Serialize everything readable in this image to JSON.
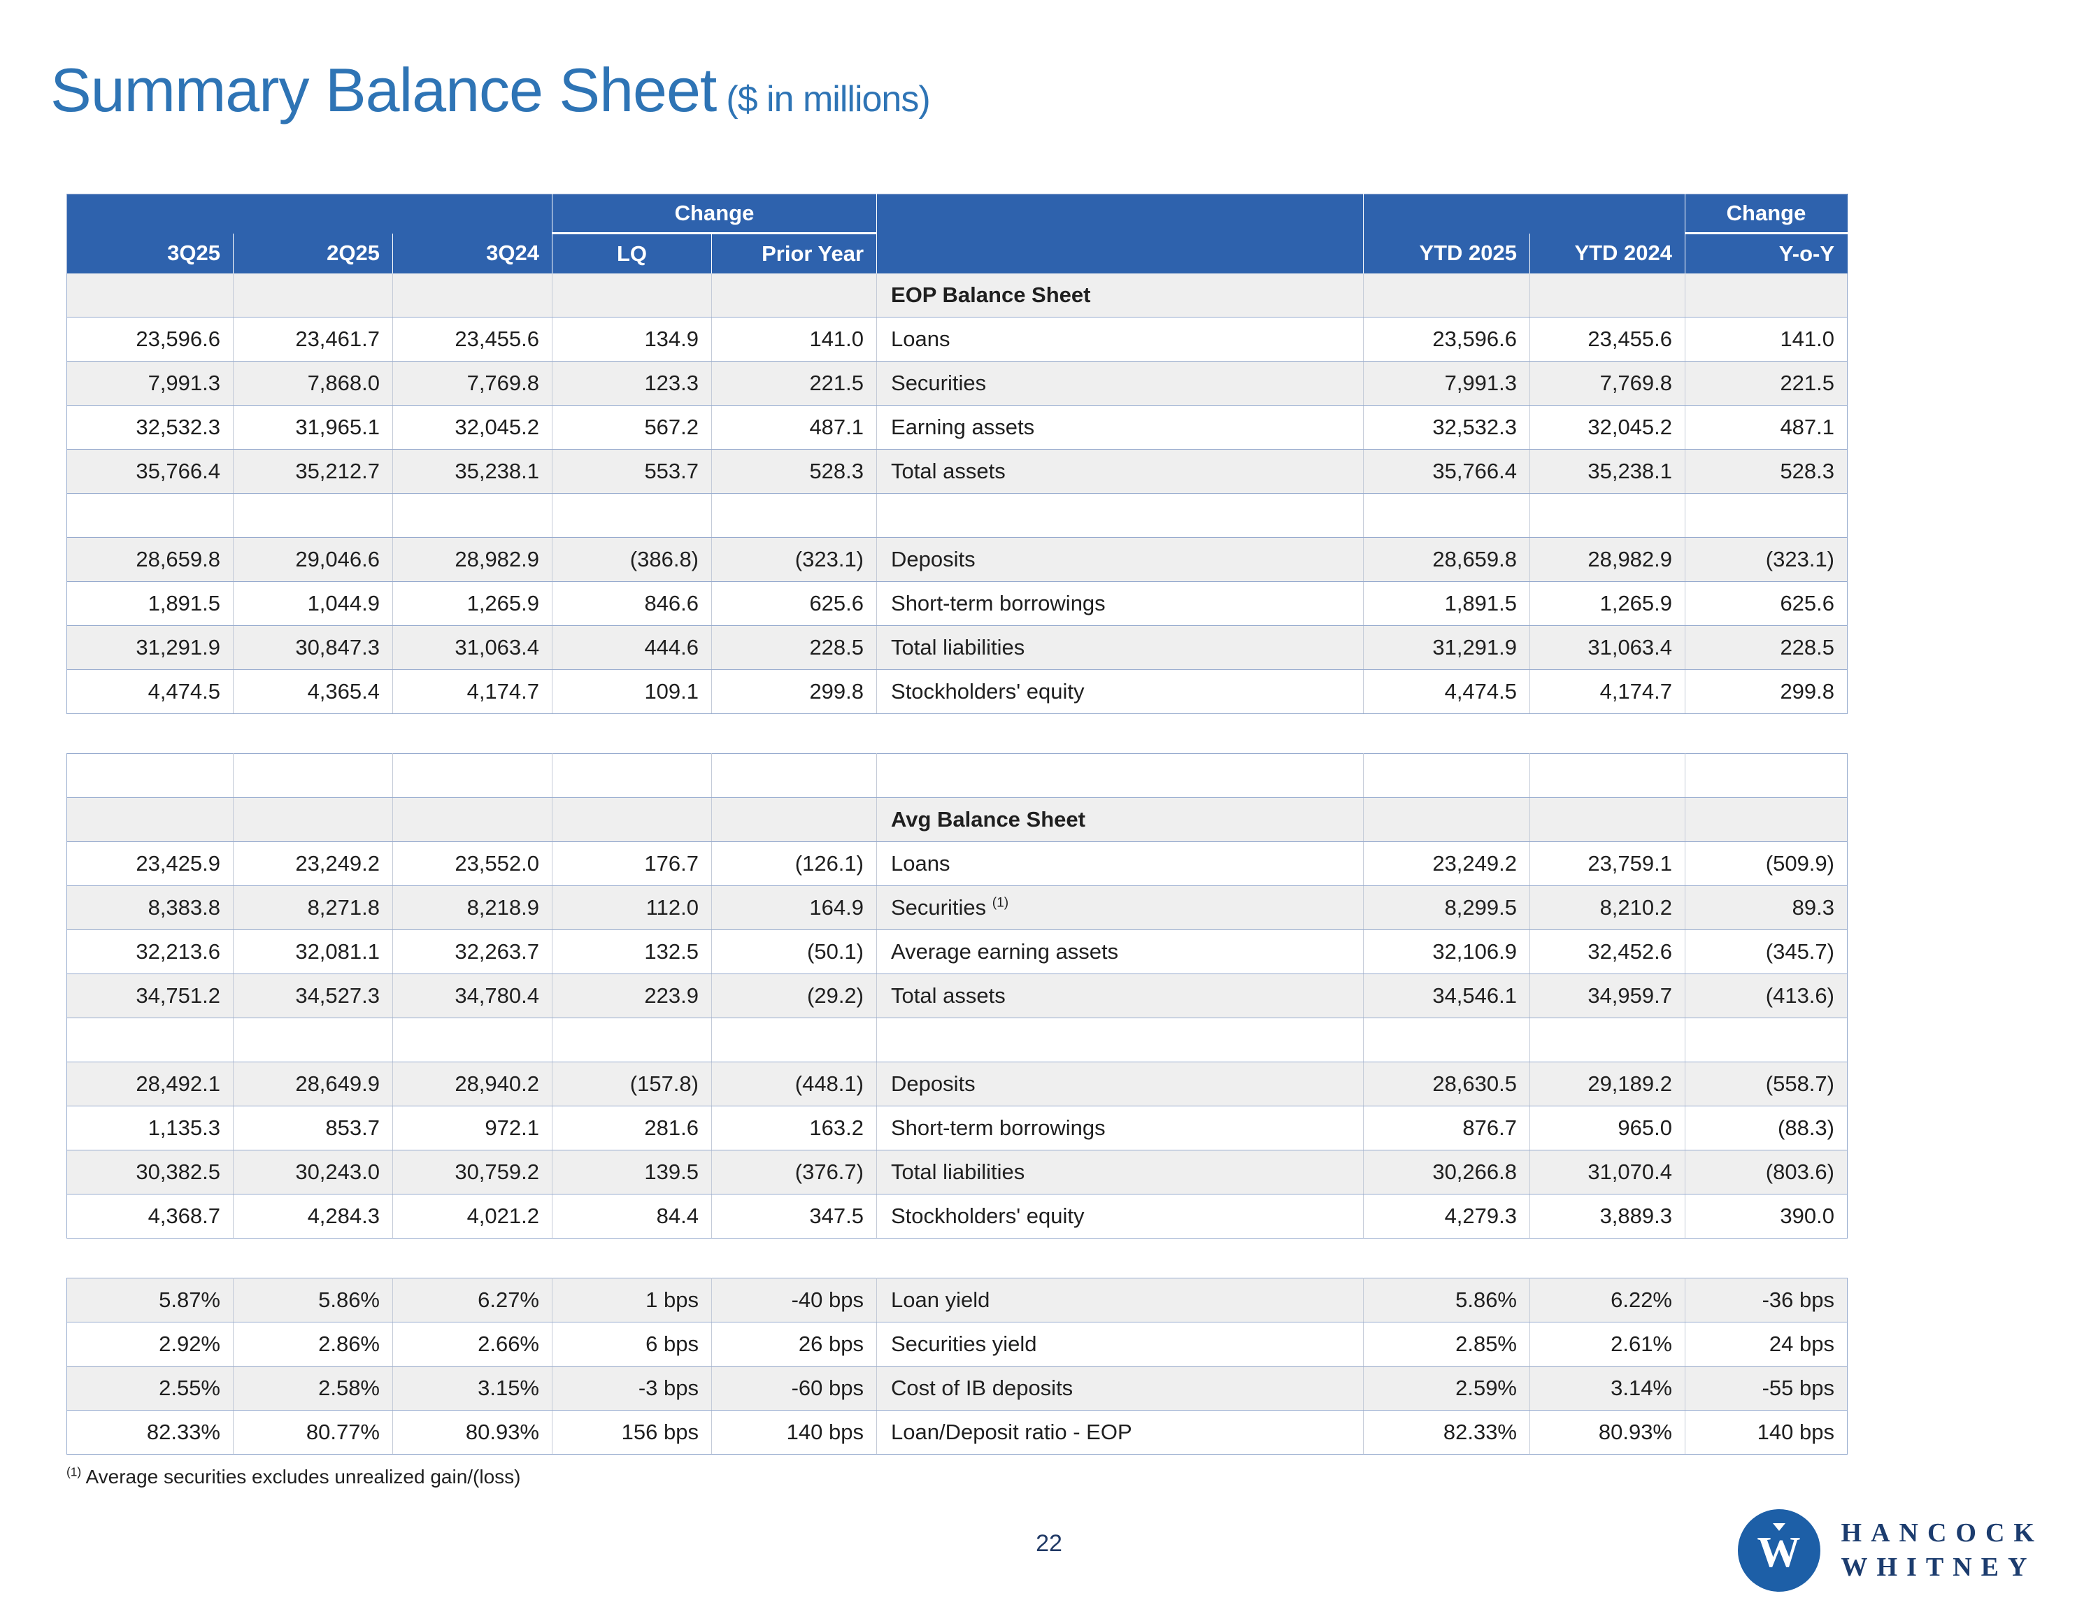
{
  "title": "Summary Balance Sheet",
  "title_suffix": "($ in millions)",
  "page_number": "22",
  "footnote": {
    "sup": "(1)",
    "text": " Average securities excludes unrealized gain/(loss)"
  },
  "logo": {
    "line1": "HANCOCK",
    "line2": "WHITNEY",
    "mark_letter": "W"
  },
  "colors": {
    "header_blue": "#2e62ad",
    "title_blue": "#2e74b5",
    "stripe_gray": "#efefef",
    "grid_blue": "#97abce",
    "logo_blue": "#1d5fa7",
    "logo_text_navy": "#1c3c6e"
  },
  "header": {
    "change": "Change",
    "cols": [
      "3Q25",
      "2Q25",
      "3Q24",
      "LQ",
      "Prior Year",
      "",
      "YTD 2025",
      "YTD 2024",
      "Y-o-Y"
    ]
  },
  "tables": [
    {
      "name": "eop-balance-sheet",
      "rows": [
        {
          "section": true,
          "cells": [
            "",
            "",
            "",
            "",
            "",
            "EOP Balance Sheet",
            "",
            "",
            ""
          ]
        },
        {
          "cells": [
            "23,596.6",
            "23,461.7",
            "23,455.6",
            "134.9",
            "141.0",
            "Loans",
            "23,596.6",
            "23,455.6",
            "141.0"
          ]
        },
        {
          "cells": [
            "7,991.3",
            "7,868.0",
            "7,769.8",
            "123.3",
            "221.5",
            "Securities",
            "7,991.3",
            "7,769.8",
            "221.5"
          ]
        },
        {
          "cells": [
            "32,532.3",
            "31,965.1",
            "32,045.2",
            "567.2",
            "487.1",
            "Earning assets",
            "32,532.3",
            "32,045.2",
            "487.1"
          ]
        },
        {
          "cells": [
            "35,766.4",
            "35,212.7",
            "35,238.1",
            "553.7",
            "528.3",
            "Total assets",
            "35,766.4",
            "35,238.1",
            "528.3"
          ]
        },
        {
          "cells": [
            "",
            "",
            "",
            "",
            "",
            "",
            "",
            "",
            ""
          ]
        },
        {
          "cells": [
            "28,659.8",
            "29,046.6",
            "28,982.9",
            "(386.8)",
            "(323.1)",
            "Deposits",
            "28,659.8",
            "28,982.9",
            "(323.1)"
          ]
        },
        {
          "cells": [
            "1,891.5",
            "1,044.9",
            "1,265.9",
            "846.6",
            "625.6",
            "Short-term borrowings",
            "1,891.5",
            "1,265.9",
            "625.6"
          ]
        },
        {
          "cells": [
            "31,291.9",
            "30,847.3",
            "31,063.4",
            "444.6",
            "228.5",
            "Total liabilities",
            "31,291.9",
            "31,063.4",
            "228.5"
          ]
        },
        {
          "cells": [
            "4,474.5",
            "4,365.4",
            "4,174.7",
            "109.1",
            "299.8",
            "Stockholders' equity",
            "4,474.5",
            "4,174.7",
            "299.8"
          ]
        }
      ]
    },
    {
      "name": "avg-balance-sheet",
      "rows": [
        {
          "cells": [
            "",
            "",
            "",
            "",
            "",
            "",
            "",
            "",
            ""
          ]
        },
        {
          "section": true,
          "cells": [
            "",
            "",
            "",
            "",
            "",
            "Avg Balance Sheet",
            "",
            "",
            ""
          ]
        },
        {
          "cells": [
            "23,425.9",
            "23,249.2",
            "23,552.0",
            "176.7",
            "(126.1)",
            "Loans",
            "23,249.2",
            "23,759.1",
            "(509.9)"
          ]
        },
        {
          "cells": [
            "8,383.8",
            "8,271.8",
            "8,218.9",
            "112.0",
            "164.9",
            "Securities ^(1)",
            "8,299.5",
            "8,210.2",
            "89.3"
          ]
        },
        {
          "cells": [
            "32,213.6",
            "32,081.1",
            "32,263.7",
            "132.5",
            "(50.1)",
            "Average earning assets",
            "32,106.9",
            "32,452.6",
            "(345.7)"
          ]
        },
        {
          "cells": [
            "34,751.2",
            "34,527.3",
            "34,780.4",
            "223.9",
            "(29.2)",
            "Total assets",
            "34,546.1",
            "34,959.7",
            "(413.6)"
          ]
        },
        {
          "cells": [
            "",
            "",
            "",
            "",
            "",
            "",
            "",
            "",
            ""
          ]
        },
        {
          "cells": [
            "28,492.1",
            "28,649.9",
            "28,940.2",
            "(157.8)",
            "(448.1)",
            "Deposits",
            "28,630.5",
            "29,189.2",
            "(558.7)"
          ]
        },
        {
          "cells": [
            "1,135.3",
            "853.7",
            "972.1",
            "281.6",
            "163.2",
            "Short-term borrowings",
            "876.7",
            "965.0",
            "(88.3)"
          ]
        },
        {
          "cells": [
            "30,382.5",
            "30,243.0",
            "30,759.2",
            "139.5",
            "(376.7)",
            "Total liabilities",
            "30,266.8",
            "31,070.4",
            "(803.6)"
          ]
        },
        {
          "cells": [
            "4,368.7",
            "4,284.3",
            "4,021.2",
            "84.4",
            "347.5",
            "Stockholders' equity",
            "4,279.3",
            "3,889.3",
            "390.0"
          ]
        }
      ]
    },
    {
      "name": "yields",
      "rows": [
        {
          "cells": [
            "5.87%",
            "5.86%",
            "6.27%",
            "1 bps",
            "-40 bps",
            "Loan yield",
            "5.86%",
            "6.22%",
            "-36 bps"
          ]
        },
        {
          "cells": [
            "2.92%",
            "2.86%",
            "2.66%",
            "6 bps",
            "26 bps",
            "Securities yield",
            "2.85%",
            "2.61%",
            "24 bps"
          ]
        },
        {
          "cells": [
            "2.55%",
            "2.58%",
            "3.15%",
            "-3 bps",
            "-60 bps",
            "Cost of IB deposits",
            "2.59%",
            "3.14%",
            "-55 bps"
          ]
        },
        {
          "cells": [
            "82.33%",
            "80.77%",
            "80.93%",
            "156 bps",
            "140 bps",
            "Loan/Deposit ratio - EOP",
            "82.33%",
            "80.93%",
            "140 bps"
          ]
        }
      ]
    }
  ]
}
